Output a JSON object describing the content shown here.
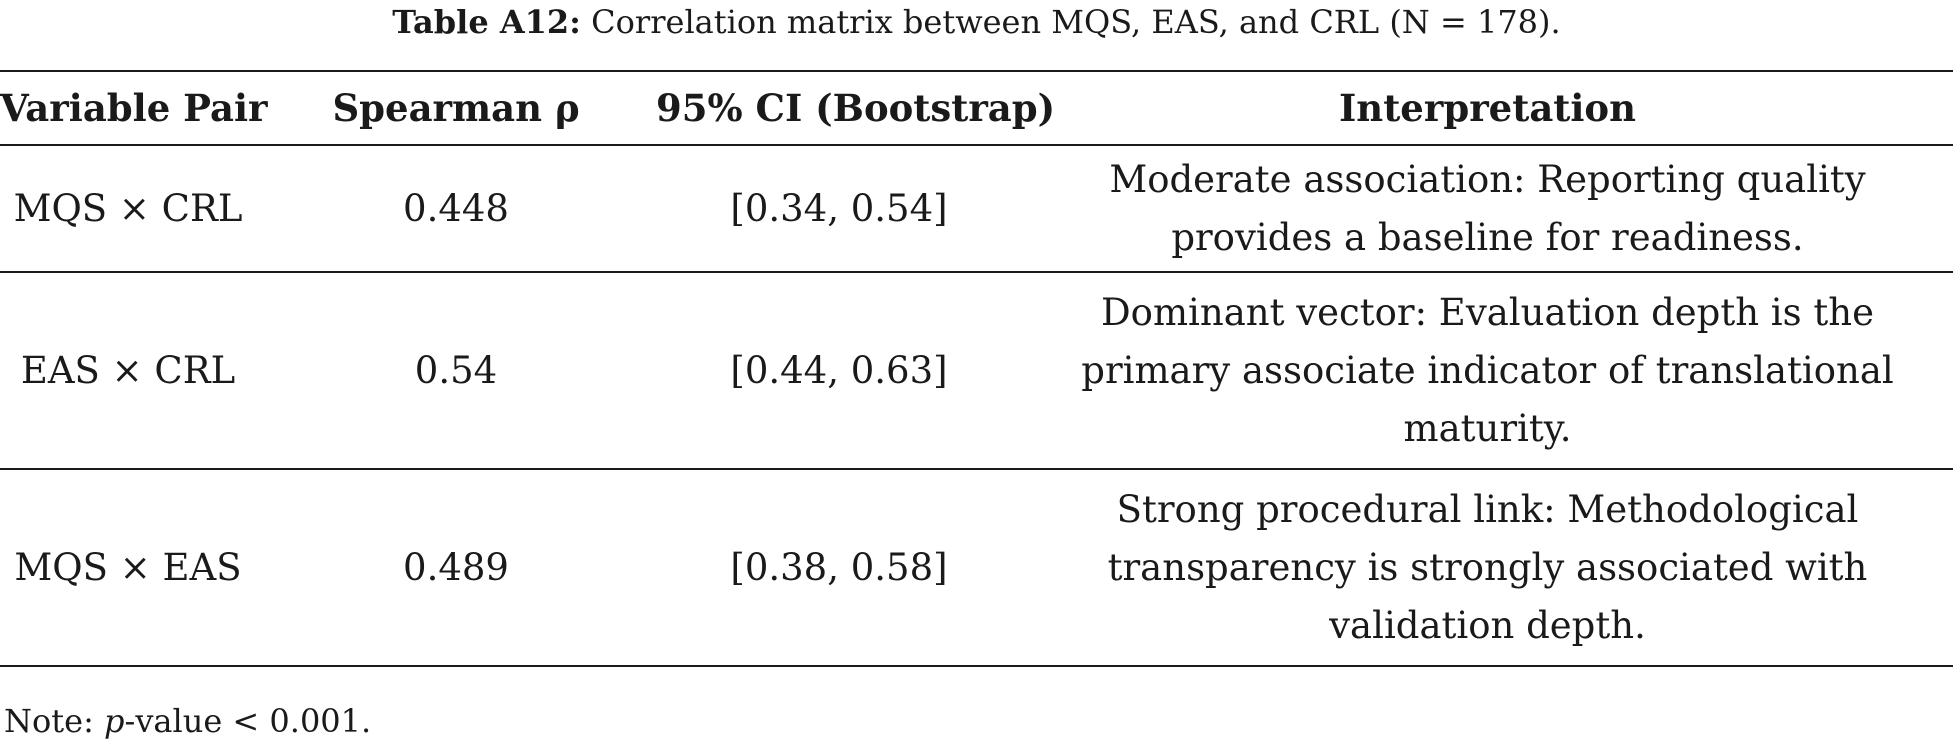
{
  "caption": {
    "label": "Table A12:",
    "text": "Correlation matrix between MQS, EAS, and CRL (N = 178)."
  },
  "table": {
    "headers": [
      "Variable Pair",
      "Spearman ρ",
      "95% CI (Bootstrap)",
      "Interpretation"
    ],
    "rows": [
      {
        "pair": "MQS × CRL",
        "rho": "0.448",
        "ci": "[0.34, 0.54]",
        "interpretation": "Moderate association: Reporting quality provides a baseline for readiness."
      },
      {
        "pair": "EAS × CRL",
        "rho": "0.54",
        "ci": "[0.44, 0.63]",
        "interpretation": "Dominant vector: Evaluation depth is the primary associate indicator of translational maturity."
      },
      {
        "pair": "MQS × EAS",
        "rho": "0.489",
        "ci": "[0.38, 0.58]",
        "interpretation": "Strong procedural link: Methodological transparency is strongly associated with validation depth."
      }
    ]
  },
  "note": {
    "prefix": "Note: ",
    "p_symbol": "p",
    "suffix": "-value < 0.001."
  }
}
